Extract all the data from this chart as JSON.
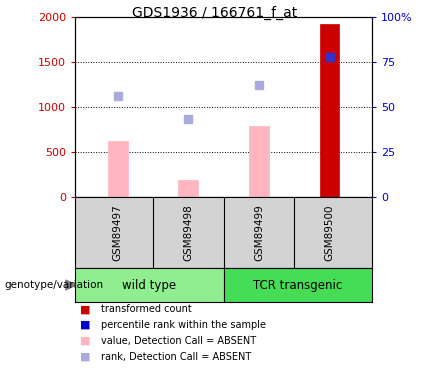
{
  "title": "GDS1936 / 166761_f_at",
  "samples": [
    "GSM89497",
    "GSM89498",
    "GSM89499",
    "GSM89500"
  ],
  "bar_values": [
    620,
    190,
    790,
    1920
  ],
  "bar_colors_main": [
    "#FFB6C1",
    "#FFB6C1",
    "#FFB6C1",
    "#CC0000"
  ],
  "rank_squares": [
    1120,
    860,
    1240,
    1550
  ],
  "rank_colors": [
    "#AAAADD",
    "#AAAADD",
    "#AAAADD",
    "#3333CC"
  ],
  "ylim_left": [
    0,
    2000
  ],
  "ylim_right": [
    0,
    100
  ],
  "yticks_left": [
    0,
    500,
    1000,
    1500,
    2000
  ],
  "yticks_right": [
    0,
    25,
    50,
    75,
    100
  ],
  "left_tick_labels": [
    "0",
    "500",
    "1000",
    "1500",
    "2000"
  ],
  "right_tick_labels": [
    "0",
    "25",
    "50",
    "75",
    "100%"
  ],
  "left_color": "#CC0000",
  "right_color": "#0000CC",
  "legend_labels": [
    "transformed count",
    "percentile rank within the sample",
    "value, Detection Call = ABSENT",
    "rank, Detection Call = ABSENT"
  ],
  "legend_colors": [
    "#CC0000",
    "#0000CC",
    "#FFB6C1",
    "#AAAADD"
  ],
  "genotype_label": "genotype/variation",
  "group_names": [
    "wild type",
    "TCR transgenic"
  ],
  "group_color_light": "#90EE90",
  "group_color_dark": "#44DD55",
  "sample_bg": "#D3D3D3",
  "x_positions": [
    1,
    2,
    3,
    4
  ]
}
